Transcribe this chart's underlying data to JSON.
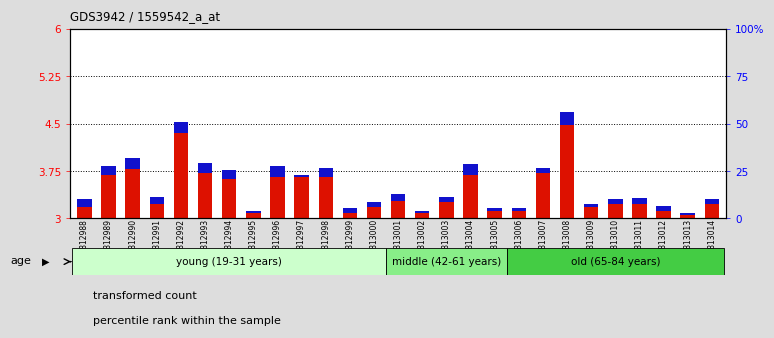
{
  "title": "GDS3942 / 1559542_a_at",
  "samples": [
    "GSM812988",
    "GSM812989",
    "GSM812990",
    "GSM812991",
    "GSM812992",
    "GSM812993",
    "GSM812994",
    "GSM812995",
    "GSM812996",
    "GSM812997",
    "GSM812998",
    "GSM812999",
    "GSM813000",
    "GSM813001",
    "GSM813002",
    "GSM813003",
    "GSM813004",
    "GSM813005",
    "GSM813006",
    "GSM813007",
    "GSM813008",
    "GSM813009",
    "GSM813010",
    "GSM813011",
    "GSM813012",
    "GSM813013",
    "GSM813014"
  ],
  "red_values": [
    3.18,
    3.68,
    3.78,
    3.22,
    4.35,
    3.72,
    3.62,
    3.08,
    3.65,
    3.65,
    3.65,
    3.08,
    3.18,
    3.27,
    3.08,
    3.25,
    3.68,
    3.12,
    3.12,
    3.72,
    4.48,
    3.18,
    3.22,
    3.22,
    3.12,
    3.05,
    3.22
  ],
  "blue_values": [
    0.12,
    0.15,
    0.18,
    0.12,
    0.18,
    0.15,
    0.15,
    0.04,
    0.18,
    0.04,
    0.15,
    0.08,
    0.08,
    0.12,
    0.04,
    0.08,
    0.18,
    0.04,
    0.04,
    0.08,
    0.2,
    0.04,
    0.08,
    0.1,
    0.08,
    0.04,
    0.08
  ],
  "ylim_left": [
    3.0,
    6.0
  ],
  "ylim_right": [
    0,
    100
  ],
  "yticks_left": [
    3.0,
    3.75,
    4.5,
    5.25,
    6.0
  ],
  "ytick_labels_left": [
    "3",
    "3.75",
    "4.5",
    "5.25",
    "6"
  ],
  "yticks_right": [
    0,
    25,
    50,
    75,
    100
  ],
  "ytick_labels_right": [
    "0",
    "25",
    "50",
    "75",
    "100%"
  ],
  "hlines": [
    3.75,
    4.5,
    5.25
  ],
  "bar_width": 0.6,
  "bar_color_red": "#dd1100",
  "bar_color_blue": "#1111cc",
  "age_groups": [
    {
      "label": "young (19-31 years)",
      "start": 0,
      "end": 13,
      "color": "#ccffcc"
    },
    {
      "label": "middle (42-61 years)",
      "start": 13,
      "end": 18,
      "color": "#88ee88"
    },
    {
      "label": "old (65-84 years)",
      "start": 18,
      "end": 27,
      "color": "#44cc44"
    }
  ],
  "age_label": "age",
  "legend_red": "transformed count",
  "legend_blue": "percentile rank within the sample",
  "fig_bg": "#dddddd",
  "plot_bg": "#ffffff"
}
